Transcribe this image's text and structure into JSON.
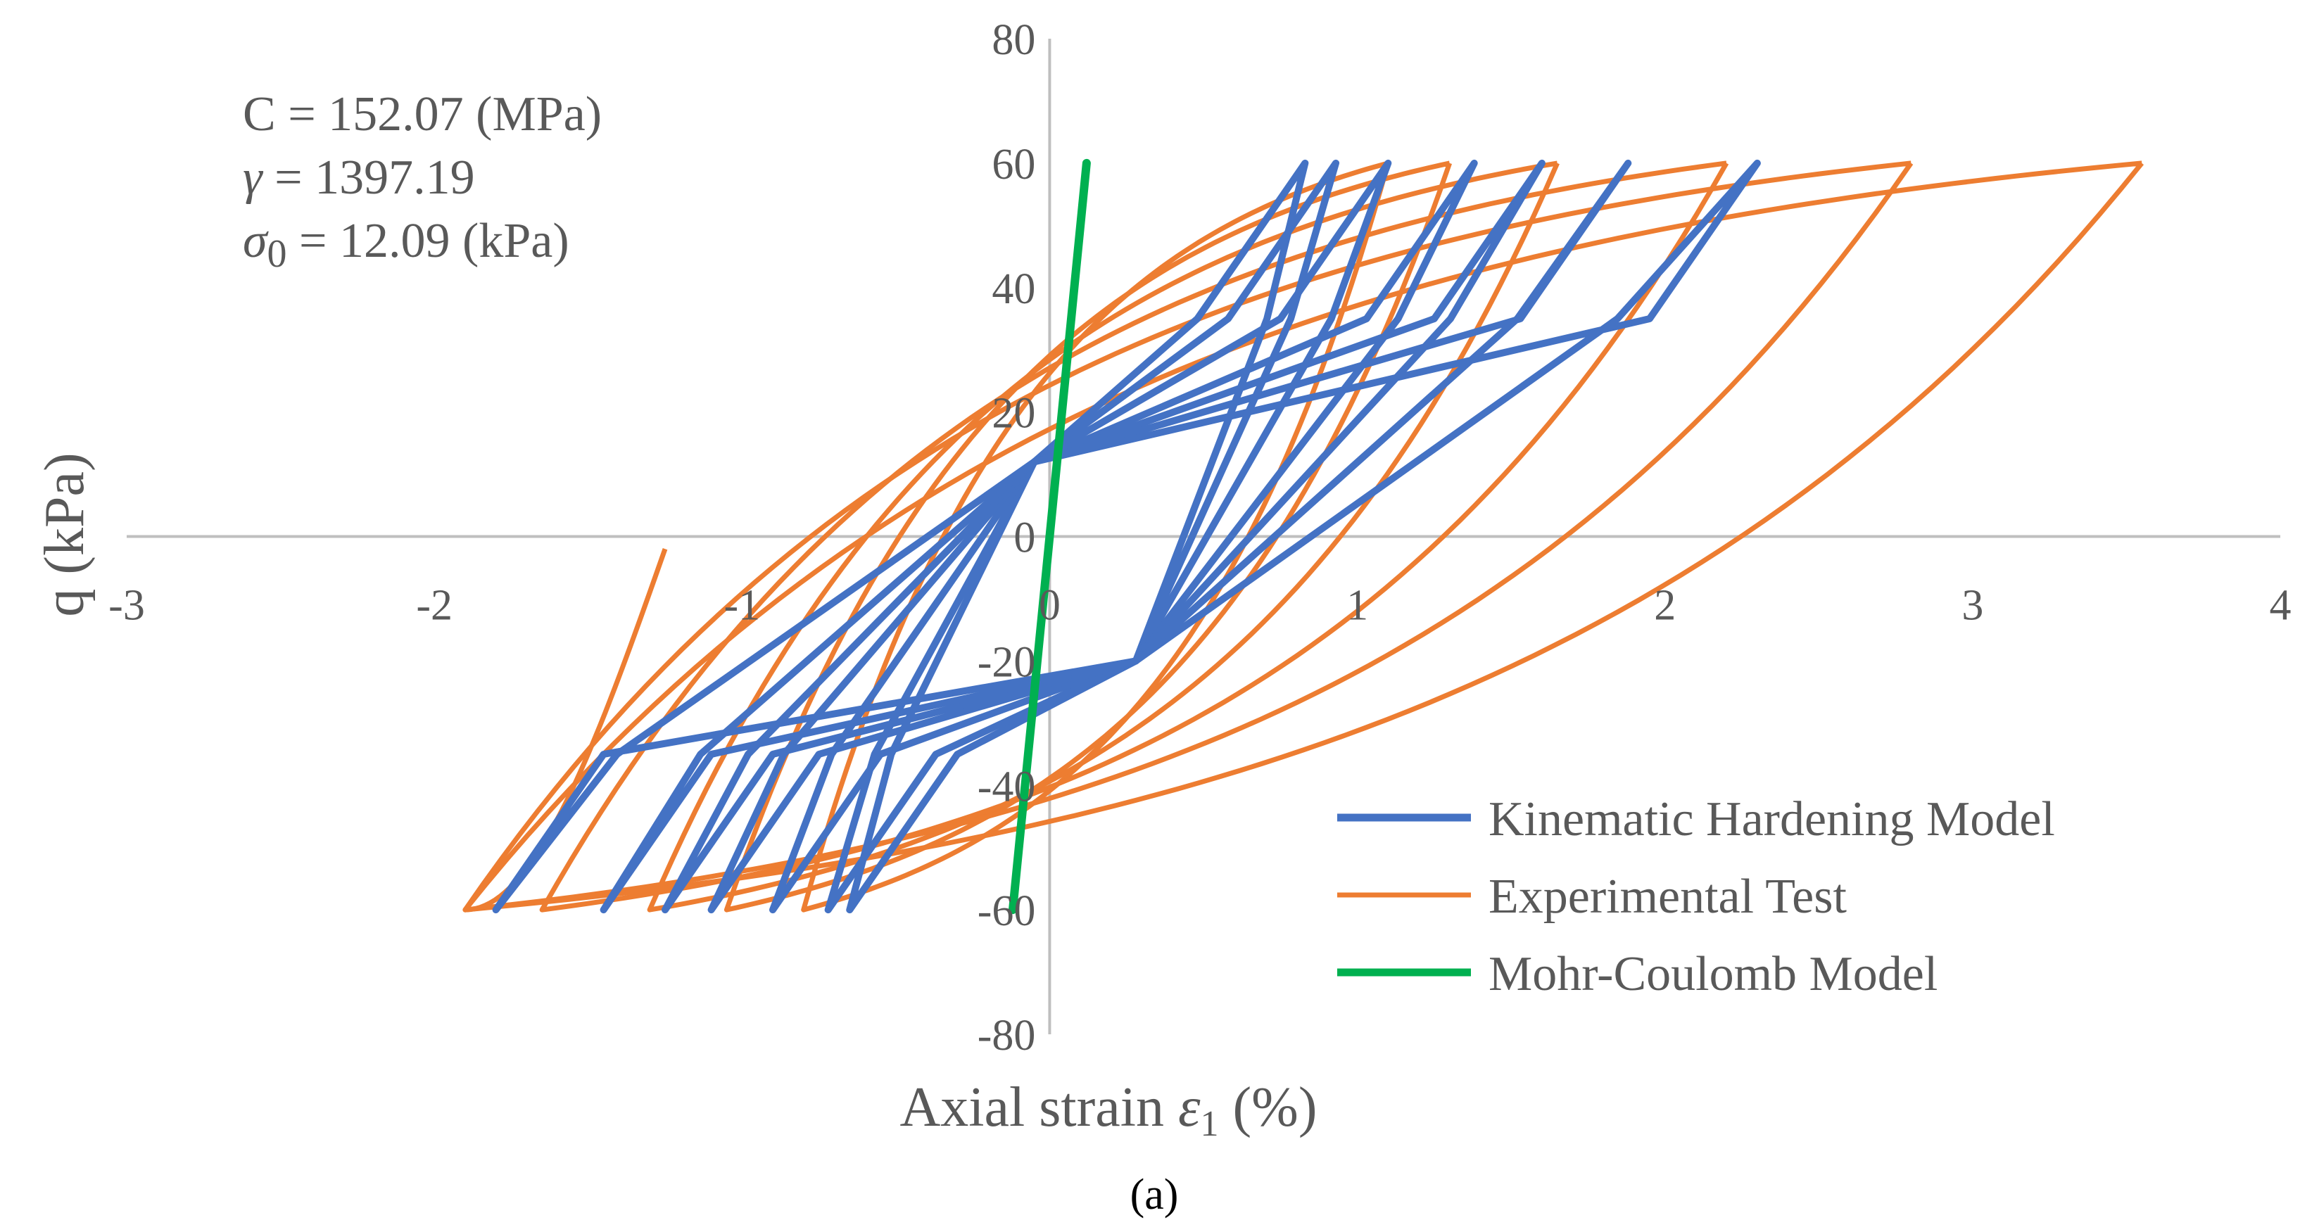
{
  "colors": {
    "kinematic": "#4472C4",
    "experimental": "#ED7D31",
    "mohr": "#00B050",
    "axis": "#BFBFBF",
    "text": "#595959"
  },
  "caption": "(a)",
  "annotation": {
    "line1": "C = 152.07 (MPa)",
    "line2_symbol": "γ",
    "line2_rest": " = 1397.19",
    "line3_symbol": "σ",
    "line3_sub": "0",
    "line3_rest": " = 12.09 (kPa)"
  },
  "chart_data": {
    "type": "line",
    "title": "",
    "xlabel_main": "Axial strain ",
    "xlabel_symbol": "ε",
    "xlabel_sub": "1",
    "xlabel_unit": " (%)",
    "ylabel": "q (kPa)",
    "xlim": [
      -3,
      4
    ],
    "ylim": [
      -80,
      80
    ],
    "xticks": [
      -3,
      -2,
      -1,
      0,
      1,
      2,
      3,
      4
    ],
    "yticks": [
      -80,
      -60,
      -40,
      -20,
      0,
      20,
      40,
      60,
      80
    ],
    "xtick_labels": [
      "-3",
      "-2",
      "-1",
      "0",
      "1",
      "2",
      "3",
      "4"
    ],
    "ytick_labels": [
      "-80",
      "-60",
      "-40",
      "-20",
      "0",
      "20",
      "40",
      "60",
      "80"
    ],
    "legend_position": "bottom-right",
    "series": [
      {
        "name": "Kinematic Hardening Model",
        "color_key": "kinematic",
        "loops": [
          {
            "pos_peak": 0.83,
            "neg_peak": -0.65
          },
          {
            "pos_peak": 0.93,
            "neg_peak": -0.72
          },
          {
            "pos_peak": 1.1,
            "neg_peak": -0.9
          },
          {
            "pos_peak": 1.38,
            "neg_peak": -1.1
          },
          {
            "pos_peak": 1.6,
            "neg_peak": -1.25
          },
          {
            "pos_peak": 1.88,
            "neg_peak": -1.45
          },
          {
            "pos_peak": 2.3,
            "neg_peak": -1.8
          }
        ]
      },
      {
        "name": "Experimental Test",
        "color_key": "experimental",
        "loops": [
          {
            "pos_peak": 1.1,
            "neg_peak": -0.8
          },
          {
            "pos_peak": 1.3,
            "neg_peak": -1.05
          },
          {
            "pos_peak": 1.65,
            "neg_peak": -1.3
          },
          {
            "pos_peak": 2.2,
            "neg_peak": -1.65
          },
          {
            "pos_peak": 2.8,
            "neg_peak": -1.9
          },
          {
            "pos_peak": 3.55,
            "neg_peak": -1.9
          }
        ],
        "start_point": [
          -1.25,
          -2
        ]
      },
      {
        "name": "Mohr-Coulomb Model",
        "color_key": "mohr",
        "x": [
          -0.12,
          0.12
        ],
        "y": [
          -60,
          60
        ]
      }
    ]
  }
}
